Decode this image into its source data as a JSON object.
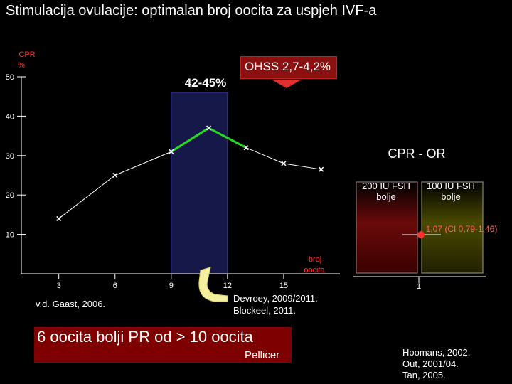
{
  "title": "Stimulacija ovulacije: optimalan broj oocita za uspjeh IVF-a",
  "colors": {
    "background": "#000000",
    "series_line": "#ffffff",
    "optimal_segment": "#22dd22",
    "optimal_band": "#16184a",
    "ohss_box": "#8b1010",
    "conclusion_box": "#7f0000",
    "or_box_left": "#5a0a0a",
    "or_box_right": "#3a3a00",
    "or_point": "#ff3030",
    "or_label": "#ff6060"
  },
  "ohss_label": "OHSS 2,7-4,2%",
  "band_label": "42-45%",
  "band_range": [
    9,
    12
  ],
  "gaast_ref": "v.d. Gaast, 2006.",
  "devroey_refs": [
    "Devroey, 2009/2011.",
    "Blockeel, 2011."
  ],
  "or_panel": {
    "title": "CPR - OR",
    "left_box_label": [
      "200 IU FSH",
      "bolje"
    ],
    "right_box_label": [
      "100 IU FSH",
      "bolje"
    ],
    "or_value_label": "1,07 (CI 0,79-1,46)",
    "or_value": 1.07,
    "axis_tick": "1"
  },
  "conclusion": {
    "text": "6 oocita bolji PR od > 10 oocita",
    "source": "Pellicer"
  },
  "refs_right": [
    "Hoomans, 2002.",
    "Out, 2001/04.",
    "Tan, 2005."
  ],
  "chart_data": {
    "type": "line",
    "ylabel": [
      "CPR",
      "%"
    ],
    "xlabel": [
      "broj",
      "oocita"
    ],
    "ylim": [
      0,
      50
    ],
    "yticks": [
      10,
      20,
      30,
      40,
      50
    ],
    "xlim": [
      1,
      18
    ],
    "xticks": [
      3,
      6,
      9,
      12,
      15
    ],
    "x": [
      3,
      6,
      9,
      11,
      13,
      15,
      17
    ],
    "values": [
      14,
      25,
      31,
      37,
      32,
      28,
      26.5
    ],
    "highlighted_x_range": [
      9,
      13
    ],
    "grid": false
  }
}
